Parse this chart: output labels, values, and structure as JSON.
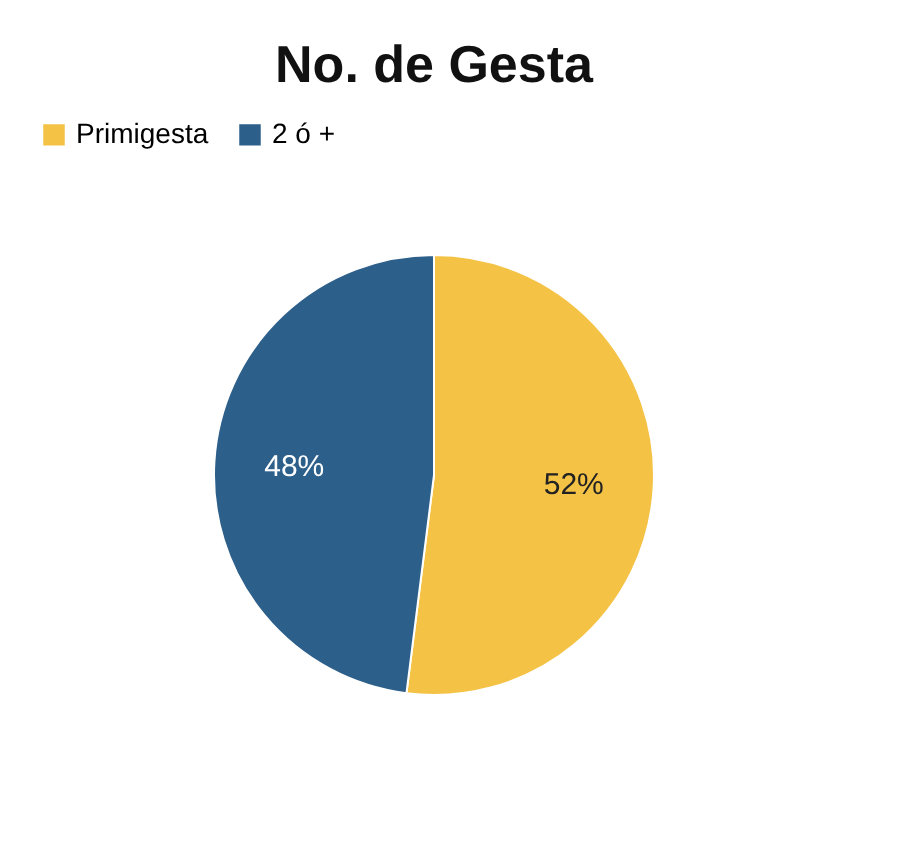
{
  "chart_data": {
    "type": "pie",
    "title": "No. de Gesta",
    "categories": [
      "Primigesta",
      "2 ó +"
    ],
    "values": [
      52,
      48
    ],
    "colors": [
      "#f4c245",
      "#2d5f8b"
    ],
    "value_labels": [
      "52%",
      "48%"
    ],
    "legend": "top"
  }
}
